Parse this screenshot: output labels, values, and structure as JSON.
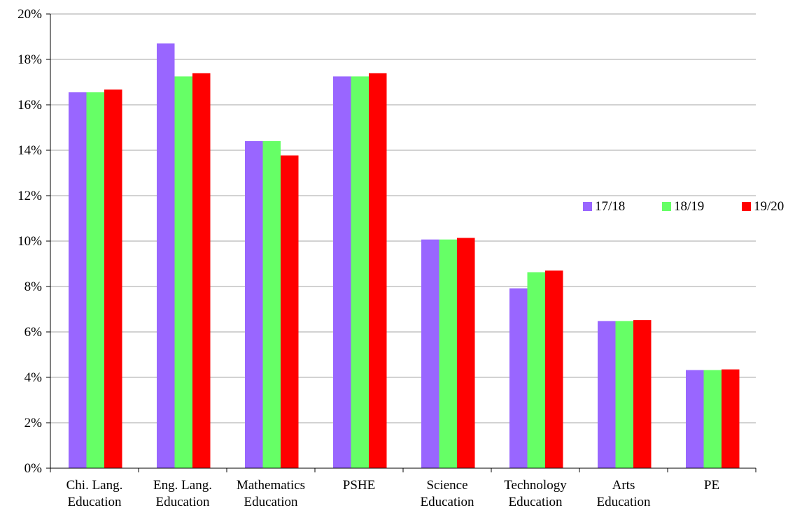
{
  "chart_data": {
    "type": "bar",
    "categories": [
      [
        "Chi. Lang.",
        "Education"
      ],
      [
        "Eng. Lang.",
        "Education"
      ],
      [
        "Mathematics",
        "Education"
      ],
      [
        "PSHE"
      ],
      [
        "Science",
        "Education"
      ],
      [
        "Technology",
        "Education"
      ],
      [
        "Arts",
        "Education"
      ],
      [
        "PE"
      ]
    ],
    "series": [
      {
        "name": "17/18",
        "color": "#9966FF",
        "values": [
          16.55,
          18.7,
          14.4,
          17.25,
          10.07,
          7.92,
          6.48,
          4.32
        ]
      },
      {
        "name": "18/19",
        "color": "#66FF66",
        "values": [
          16.55,
          17.25,
          14.4,
          17.25,
          10.07,
          8.63,
          6.48,
          4.32
        ]
      },
      {
        "name": "19/20",
        "color": "#FF0000",
        "values": [
          16.67,
          17.39,
          13.77,
          17.39,
          10.14,
          8.7,
          6.52,
          4.35
        ]
      }
    ],
    "y_ticks": [
      "0%",
      "2%",
      "4%",
      "6%",
      "8%",
      "10%",
      "12%",
      "14%",
      "16%",
      "18%",
      "20%"
    ],
    "ylim": [
      0,
      20
    ],
    "grid": true,
    "legend_position": "right"
  }
}
